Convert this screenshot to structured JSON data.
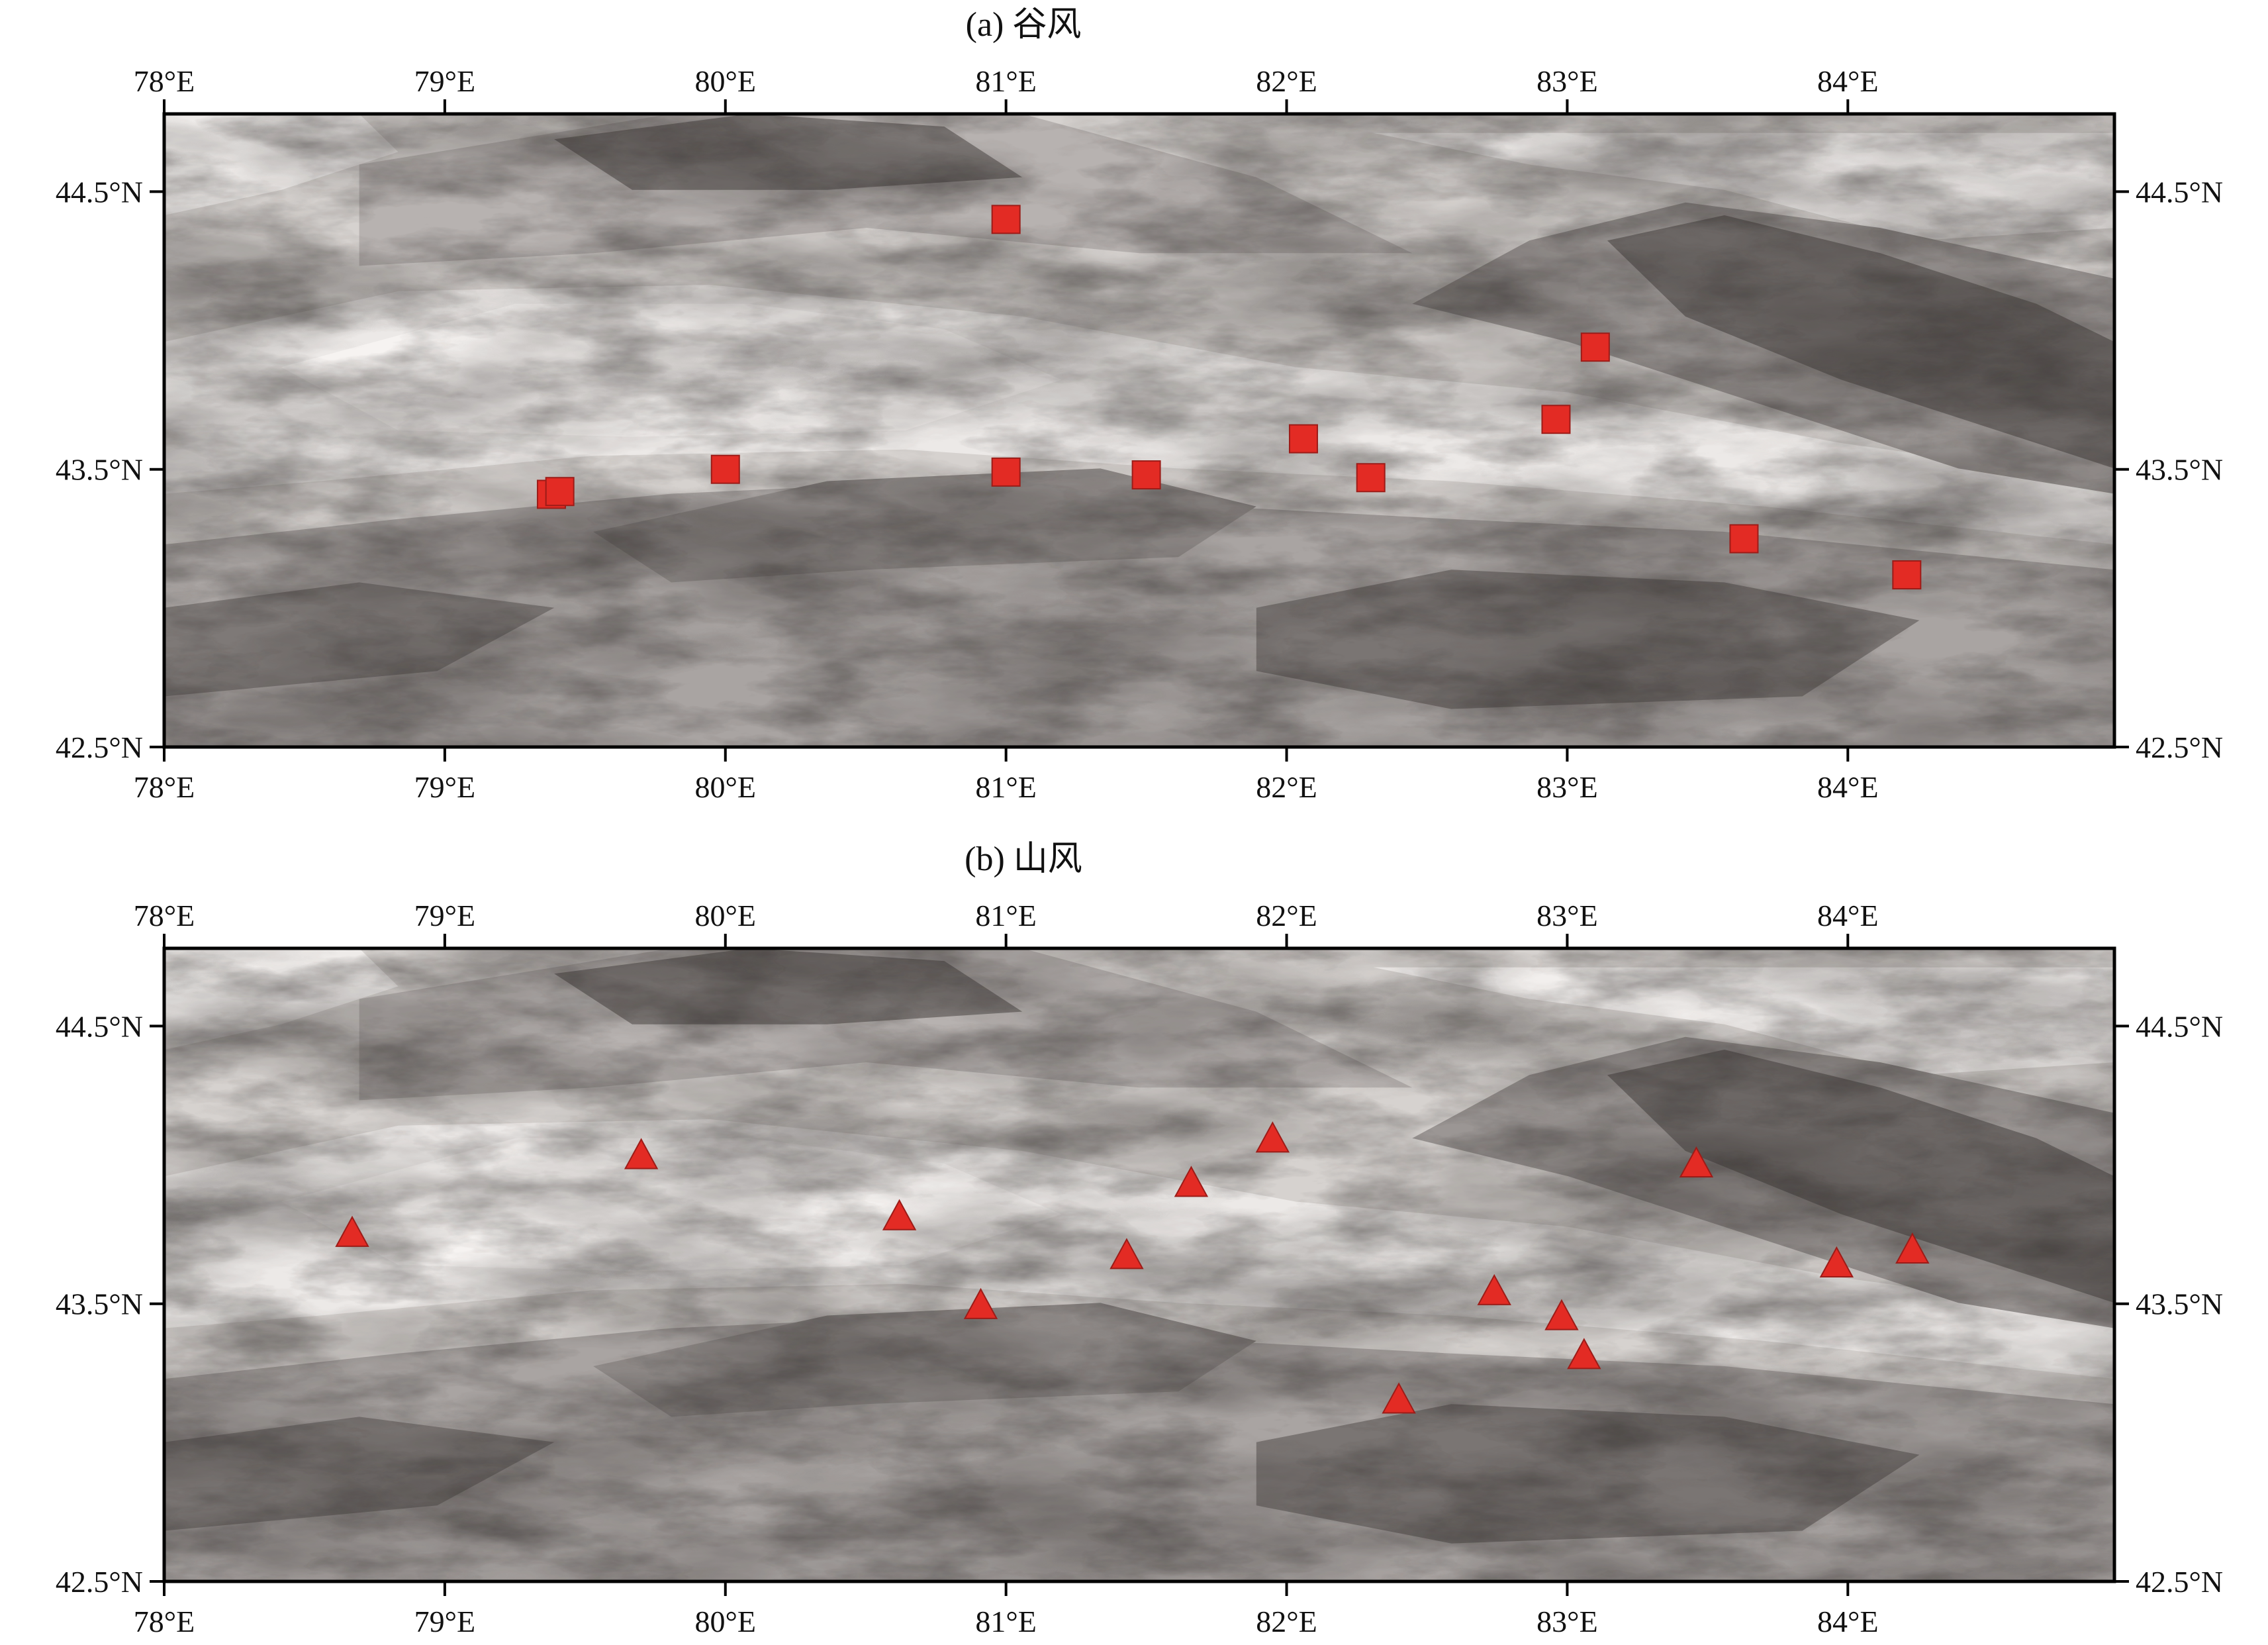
{
  "figure": {
    "panels": [
      {
        "id": "a",
        "title": "(a) 谷风",
        "marker": "square",
        "marker_color": "#e32b24",
        "lon_range": [
          78.0,
          84.95
        ],
        "lat_range": [
          42.5,
          44.78
        ],
        "x_ticks": [
          78,
          79,
          80,
          81,
          82,
          83,
          84
        ],
        "x_tick_labels": [
          "78°E",
          "79°E",
          "80°E",
          "81°E",
          "82°E",
          "83°E",
          "84°E"
        ],
        "y_ticks": [
          42.5,
          43.5,
          44.5
        ],
        "y_tick_labels": [
          "42.5°N",
          "43.5°N",
          "44.5°N"
        ],
        "stations": [
          {
            "lon": 81.0,
            "lat": 44.4
          },
          {
            "lon": 83.1,
            "lat": 43.94
          },
          {
            "lon": 82.96,
            "lat": 43.68
          },
          {
            "lon": 82.06,
            "lat": 43.61
          },
          {
            "lon": 82.3,
            "lat": 43.47
          },
          {
            "lon": 79.38,
            "lat": 43.41
          },
          {
            "lon": 79.41,
            "lat": 43.42
          },
          {
            "lon": 80.0,
            "lat": 43.5
          },
          {
            "lon": 81.0,
            "lat": 43.49
          },
          {
            "lon": 81.5,
            "lat": 43.48
          },
          {
            "lon": 83.63,
            "lat": 43.25
          },
          {
            "lon": 84.21,
            "lat": 43.12
          }
        ]
      },
      {
        "id": "b",
        "title": "(b) 山风",
        "marker": "triangle",
        "marker_color": "#e32b24",
        "lon_range": [
          78.0,
          84.95
        ],
        "lat_range": [
          42.5,
          44.78
        ],
        "x_ticks": [
          78,
          79,
          80,
          81,
          82,
          83,
          84
        ],
        "x_tick_labels": [
          "78°E",
          "79°E",
          "80°E",
          "81°E",
          "82°E",
          "83°E",
          "84°E"
        ],
        "y_ticks": [
          42.5,
          43.5,
          44.5
        ],
        "y_tick_labels": [
          "42.5°N",
          "43.5°N",
          "44.5°N"
        ],
        "stations": [
          {
            "lon": 78.67,
            "lat": 43.75
          },
          {
            "lon": 79.7,
            "lat": 44.03
          },
          {
            "lon": 80.62,
            "lat": 43.81
          },
          {
            "lon": 80.91,
            "lat": 43.49
          },
          {
            "lon": 81.43,
            "lat": 43.67
          },
          {
            "lon": 81.66,
            "lat": 43.93
          },
          {
            "lon": 81.95,
            "lat": 44.09
          },
          {
            "lon": 82.4,
            "lat": 43.15
          },
          {
            "lon": 82.74,
            "lat": 43.54
          },
          {
            "lon": 82.98,
            "lat": 43.45
          },
          {
            "lon": 83.06,
            "lat": 43.31
          },
          {
            "lon": 83.46,
            "lat": 44.0
          },
          {
            "lon": 83.96,
            "lat": 43.64
          },
          {
            "lon": 84.23,
            "lat": 43.69
          }
        ]
      }
    ]
  }
}
